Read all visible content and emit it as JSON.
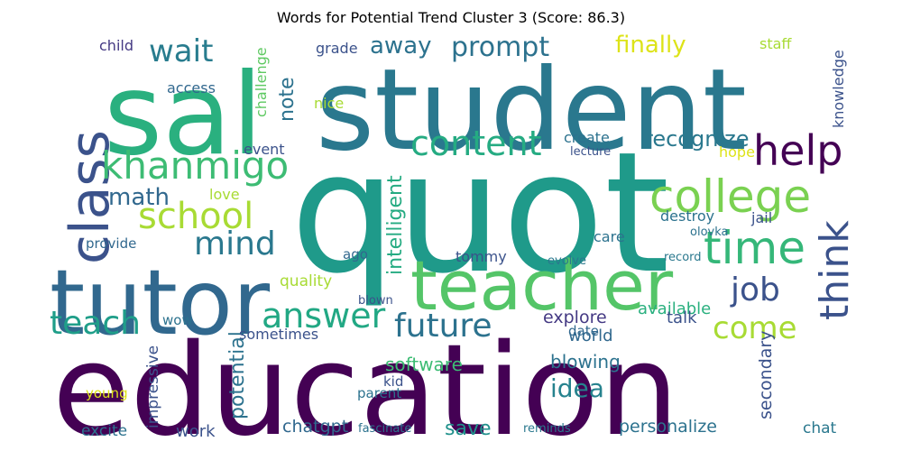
{
  "title": "Words for Potential Trend Cluster 3 (Score: 86.3)",
  "words": [
    {
      "text": "quot",
      "color": "#1f9a8a"
    },
    {
      "text": "education",
      "color": "#440154"
    },
    {
      "text": "student",
      "color": "#2a788e"
    },
    {
      "text": "sal",
      "color": "#2ab07f"
    },
    {
      "text": "tutor",
      "color": "#31688e"
    },
    {
      "text": "teacher",
      "color": "#54c568"
    },
    {
      "text": "class",
      "color": "#3b528b"
    },
    {
      "text": "college",
      "color": "#7ad151"
    },
    {
      "text": "time",
      "color": "#35b779"
    },
    {
      "text": "khanmigo",
      "color": "#3dbc74"
    },
    {
      "text": "help",
      "color": "#440154"
    },
    {
      "text": "think",
      "color": "#3b528b"
    },
    {
      "text": "school",
      "color": "#a8db34"
    },
    {
      "text": "answer",
      "color": "#22a884"
    },
    {
      "text": "content",
      "color": "#25ab82"
    },
    {
      "text": "future",
      "color": "#2c728e"
    },
    {
      "text": "mind",
      "color": "#2a788e"
    },
    {
      "text": "job",
      "color": "#3b528b"
    },
    {
      "text": "come",
      "color": "#a8db34"
    },
    {
      "text": "teach",
      "color": "#1f9e89"
    },
    {
      "text": "wait",
      "color": "#287c8e"
    },
    {
      "text": "prompt",
      "color": "#2c728e"
    },
    {
      "text": "math",
      "color": "#31688e"
    },
    {
      "text": "finally",
      "color": "#dde318"
    },
    {
      "text": "idea",
      "color": "#26828e"
    },
    {
      "text": "away",
      "color": "#2c728e"
    },
    {
      "text": "recognize",
      "color": "#2a788e"
    },
    {
      "text": "intelligent",
      "color": "#25ab82"
    },
    {
      "text": "potential",
      "color": "#2c728e"
    },
    {
      "text": "note",
      "color": "#2c728e"
    },
    {
      "text": "secondary",
      "color": "#3b528b"
    },
    {
      "text": "save",
      "color": "#21918c"
    },
    {
      "text": "personalize",
      "color": "#2c728e"
    },
    {
      "text": "chatgpt",
      "color": "#31688e"
    },
    {
      "text": "impressive",
      "color": "#3b528b"
    },
    {
      "text": "blowing",
      "color": "#2c728e"
    },
    {
      "text": "software",
      "color": "#3dbc74"
    },
    {
      "text": "explore",
      "color": "#443983"
    },
    {
      "text": "world",
      "color": "#31688e"
    },
    {
      "text": "available",
      "color": "#2ab07f"
    },
    {
      "text": "talk",
      "color": "#3b528b"
    },
    {
      "text": "work",
      "color": "#3b528b"
    },
    {
      "text": "excite",
      "color": "#2c728e"
    },
    {
      "text": "chat",
      "color": "#2a788e"
    },
    {
      "text": "sometimes",
      "color": "#3b528b"
    },
    {
      "text": "challenge",
      "color": "#5ec962"
    },
    {
      "text": "knowledge",
      "color": "#3b528b"
    },
    {
      "text": "tommy",
      "color": "#3b528b"
    },
    {
      "text": "quality",
      "color": "#a8db34"
    },
    {
      "text": "destroy",
      "color": "#2c728e"
    },
    {
      "text": "create",
      "color": "#2c728e"
    },
    {
      "text": "care",
      "color": "#2c728e"
    },
    {
      "text": "jail",
      "color": "#3b528b"
    },
    {
      "text": "event",
      "color": "#3b528b"
    },
    {
      "text": "access",
      "color": "#31688e"
    },
    {
      "text": "child",
      "color": "#443983"
    },
    {
      "text": "grade",
      "color": "#3b528b"
    },
    {
      "text": "staff",
      "color": "#a8db34"
    },
    {
      "text": "nice",
      "color": "#a8db34"
    },
    {
      "text": "love",
      "color": "#a8db34"
    },
    {
      "text": "hope",
      "color": "#dde318"
    },
    {
      "text": "provide",
      "color": "#31688e"
    },
    {
      "text": "ago",
      "color": "#31688e"
    },
    {
      "text": "wow",
      "color": "#2c728e"
    },
    {
      "text": "date",
      "color": "#31688e"
    },
    {
      "text": "kid",
      "color": "#3b528b"
    },
    {
      "text": "parent",
      "color": "#2c728e"
    },
    {
      "text": "young",
      "color": "#dde318"
    },
    {
      "text": "lecture",
      "color": "#3b528b"
    },
    {
      "text": "olovka",
      "color": "#2c728e"
    },
    {
      "text": "evolve",
      "color": "#2a788e"
    },
    {
      "text": "record",
      "color": "#2a788e"
    },
    {
      "text": "blown",
      "color": "#3b528b"
    },
    {
      "text": "fascinate",
      "color": "#2c728e"
    },
    {
      "text": "reminds",
      "color": "#2a788e"
    }
  ]
}
